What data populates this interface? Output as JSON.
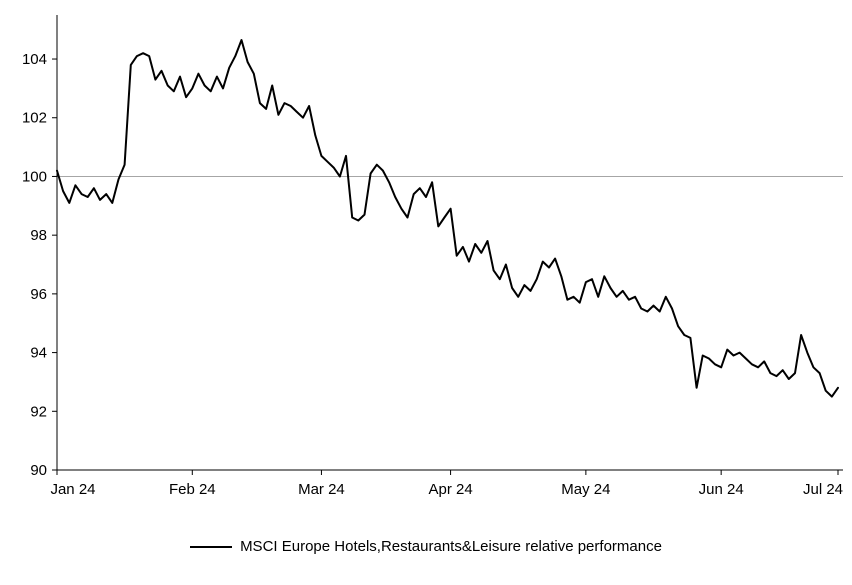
{
  "page": {
    "background": "#ffffff",
    "text_color": "#000000"
  },
  "legend": {
    "label": "MSCI Europe Hotels,Restaurants&Leisure relative performance",
    "line_color": "#000000"
  },
  "chart_data": {
    "type": "line",
    "title": "",
    "xlabel": "",
    "ylabel": "",
    "grid": false,
    "legend_position": "bottom",
    "reference_line": 100,
    "reference_line_color": "#a6a6a6",
    "axis_color": "#000000",
    "ylim": [
      90,
      105.5
    ],
    "y_ticks": [
      90,
      92,
      94,
      96,
      98,
      100,
      102,
      104
    ],
    "x_tick_labels": [
      "Jan 24",
      "Feb 24",
      "Mar 24",
      "Apr 24",
      "May 24",
      "Jun 24",
      "Jul 24"
    ],
    "x_tick_indices": [
      0,
      22,
      43,
      64,
      86,
      108,
      127
    ],
    "series": [
      {
        "name": "MSCI Europe Hotels,Restaurants&Leisure relative performance",
        "color": "#000000",
        "values": [
          100.2,
          99.5,
          99.1,
          99.7,
          99.4,
          99.3,
          99.6,
          99.2,
          99.4,
          99.1,
          99.9,
          100.4,
          103.8,
          104.1,
          104.2,
          104.1,
          103.3,
          103.6,
          103.1,
          102.9,
          103.4,
          102.7,
          103.0,
          103.5,
          103.1,
          102.9,
          103.4,
          103.0,
          103.7,
          104.1,
          104.65,
          103.9,
          103.5,
          102.5,
          102.3,
          103.1,
          102.1,
          102.5,
          102.4,
          102.2,
          102.0,
          102.4,
          101.4,
          100.7,
          100.5,
          100.3,
          100.0,
          100.7,
          98.6,
          98.5,
          98.7,
          100.1,
          100.4,
          100.2,
          99.8,
          99.3,
          98.9,
          98.6,
          99.4,
          99.6,
          99.3,
          99.8,
          98.3,
          98.6,
          98.9,
          97.3,
          97.6,
          97.1,
          97.7,
          97.4,
          97.8,
          96.8,
          96.5,
          97.0,
          96.2,
          95.9,
          96.3,
          96.1,
          96.5,
          97.1,
          96.9,
          97.2,
          96.6,
          95.8,
          95.9,
          95.7,
          96.4,
          96.5,
          95.9,
          96.6,
          96.2,
          95.9,
          96.1,
          95.8,
          95.9,
          95.5,
          95.4,
          95.6,
          95.4,
          95.9,
          95.5,
          94.9,
          94.6,
          94.5,
          92.8,
          93.9,
          93.8,
          93.6,
          93.5,
          94.1,
          93.9,
          94.0,
          93.8,
          93.6,
          93.5,
          93.7,
          93.3,
          93.2,
          93.4,
          93.1,
          93.3,
          94.6,
          94.0,
          93.5,
          93.3,
          92.7,
          92.5,
          92.8
        ]
      }
    ]
  }
}
